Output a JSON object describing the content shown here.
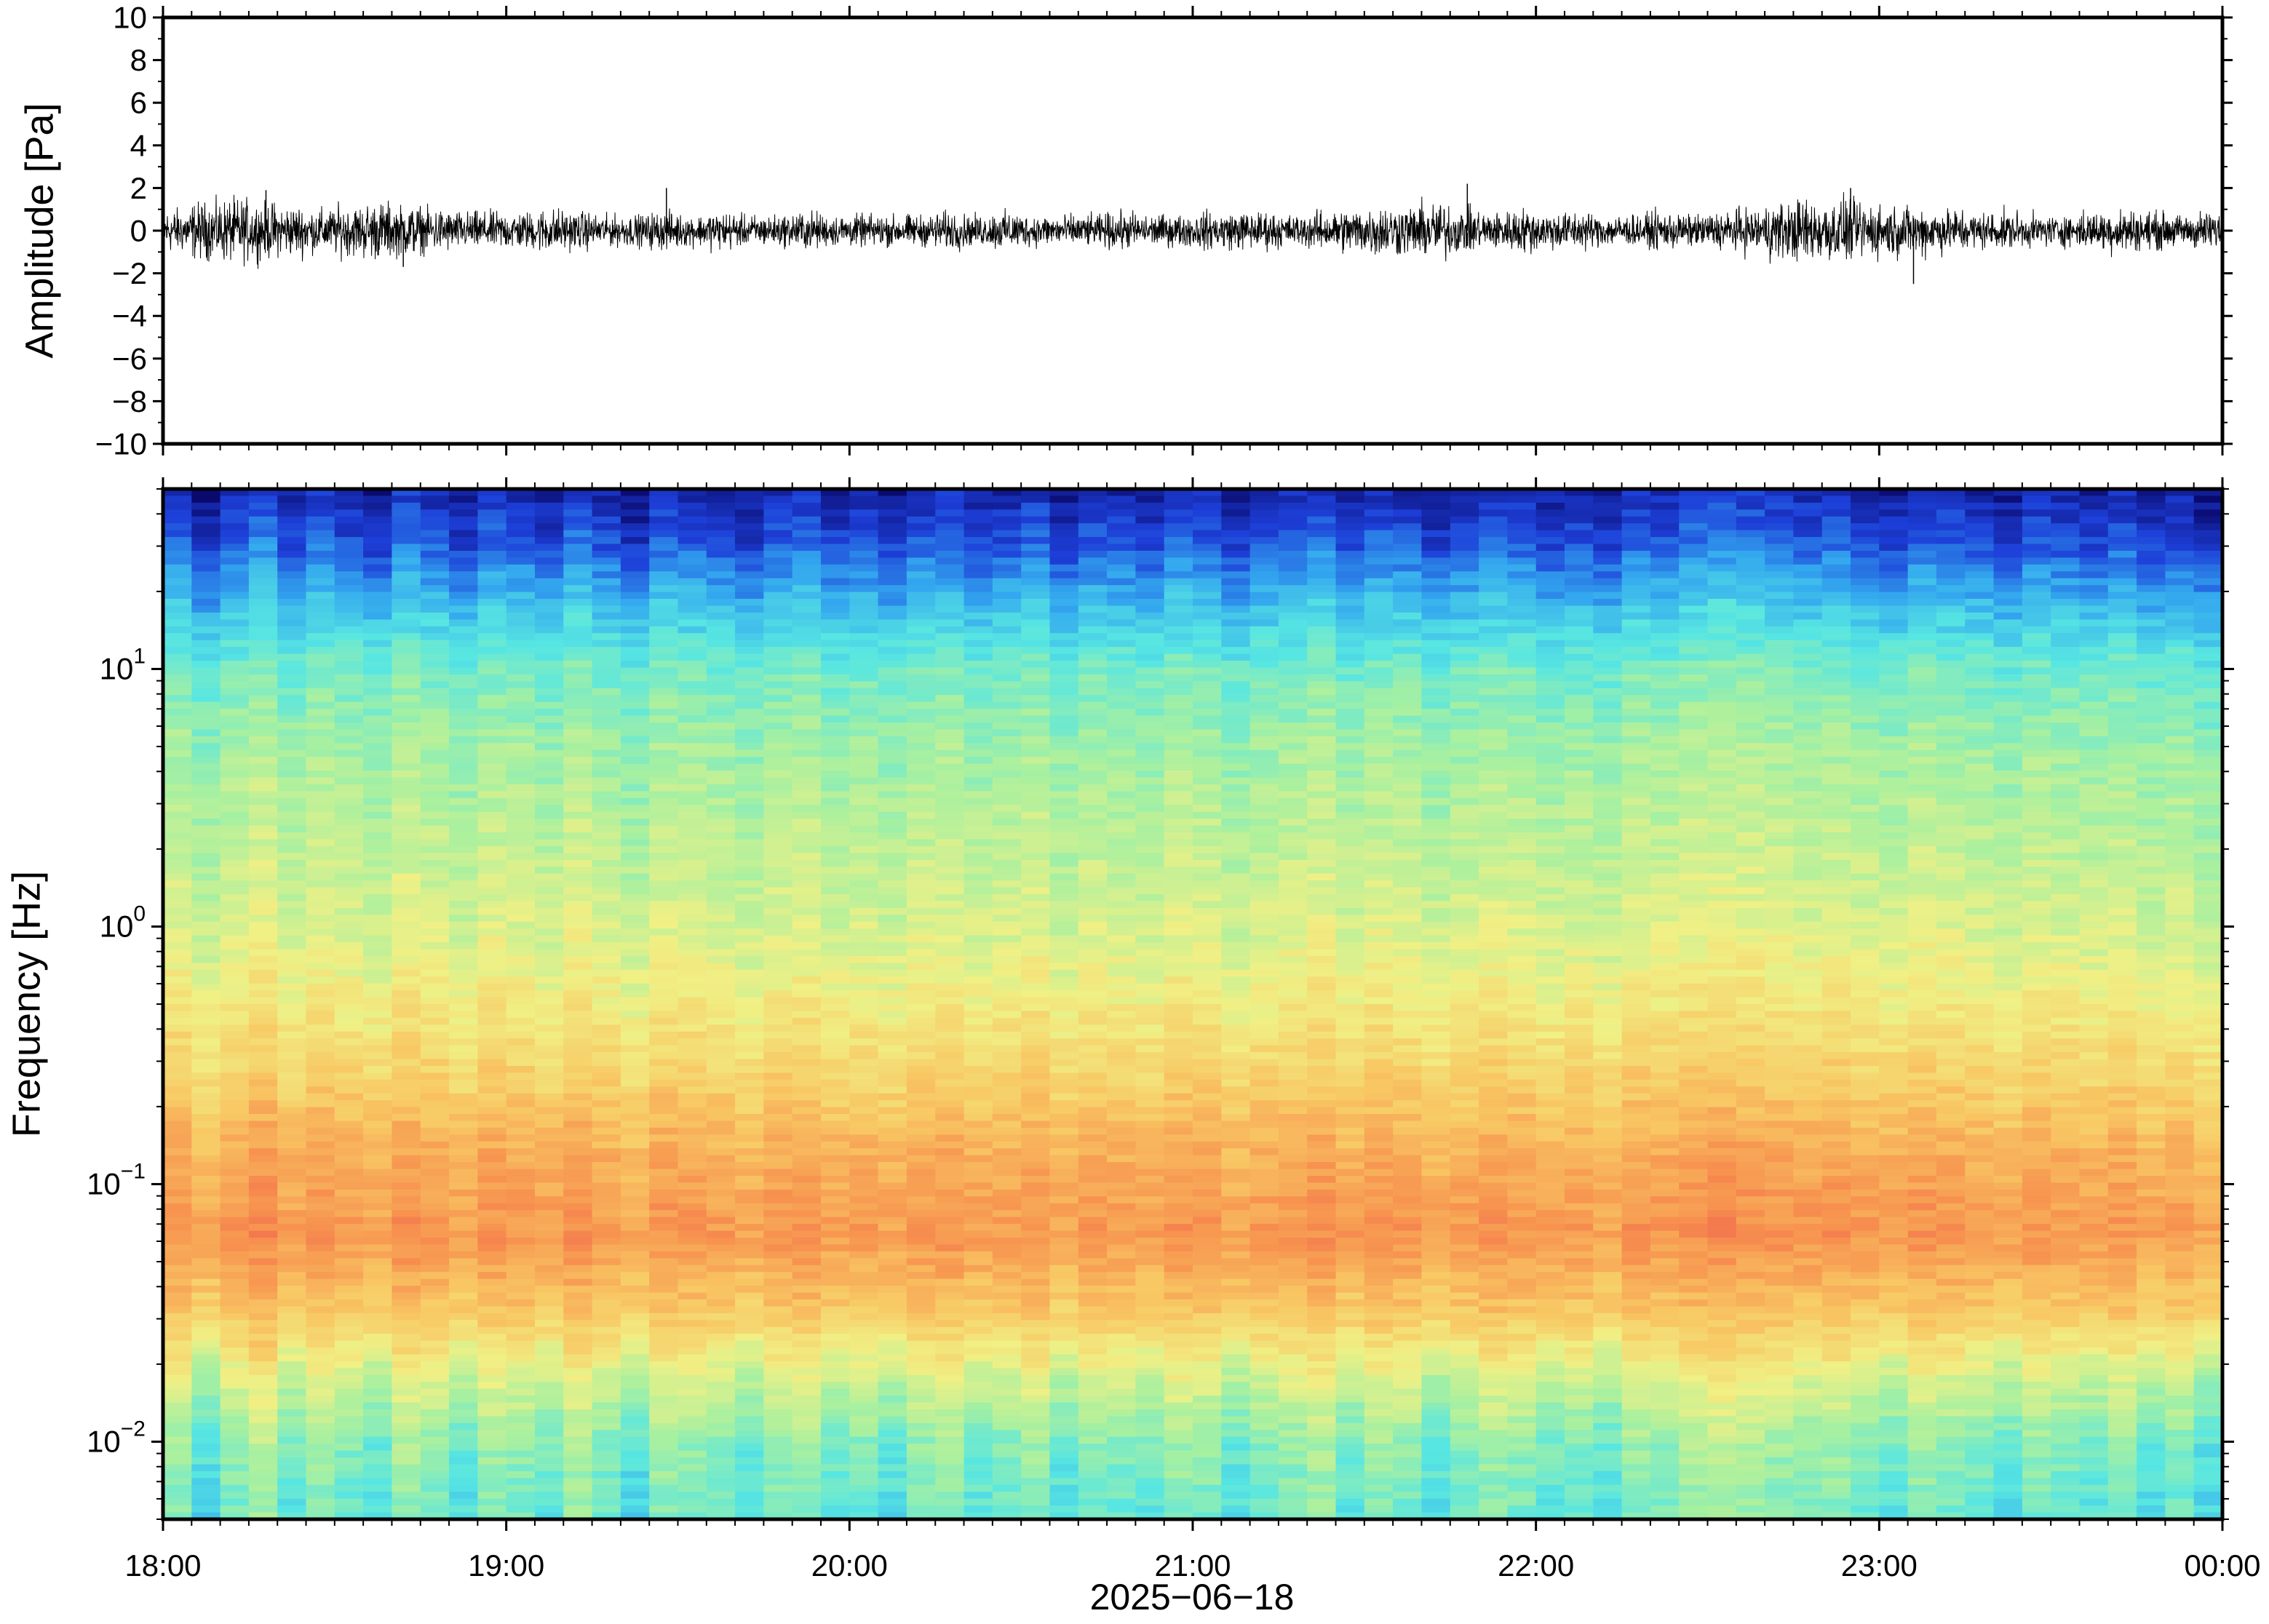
{
  "chart_data": [
    {
      "type": "line",
      "panel": "waveform",
      "ylabel": "Amplitude [Pa]",
      "ylim": [
        -10,
        10
      ],
      "y_ticks": [
        "10",
        "8",
        "6",
        "4",
        "2",
        "0",
        "−2",
        "−4",
        "−6",
        "−8",
        "−10"
      ],
      "y_tick_values": [
        10,
        8,
        6,
        4,
        2,
        0,
        -2,
        -4,
        -6,
        -8,
        -10
      ],
      "x_range": [
        "18:00",
        "00:00"
      ],
      "series": [
        {
          "line_color": "#000000",
          "envelope_per_5min": [
            0.7,
            0.9,
            1.0,
            0.9,
            0.8,
            0.7,
            0.8,
            0.9,
            0.8,
            0.7,
            0.6,
            0.6,
            0.6,
            0.7,
            0.6,
            0.5,
            0.5,
            0.6,
            0.5,
            0.6,
            0.5,
            0.5,
            0.6,
            0.5,
            0.5,
            0.5,
            0.5,
            0.6,
            0.5,
            0.6,
            0.5,
            0.5,
            0.5,
            0.6,
            0.5,
            0.5,
            0.6,
            0.6,
            0.6,
            0.5,
            0.6,
            0.7,
            0.8,
            0.8,
            0.9,
            0.7,
            0.6,
            0.7,
            0.6,
            0.6,
            0.5,
            0.5,
            0.6,
            0.5,
            0.6,
            0.7,
            0.9,
            1.0,
            1.0,
            0.9,
            0.8,
            0.8,
            0.7,
            0.6,
            0.6,
            0.5,
            0.5,
            0.6,
            0.7,
            0.6,
            0.5,
            0.6
          ],
          "peaks": [
            {
              "time": "18:18",
              "value": 1.9
            },
            {
              "time": "18:42",
              "value": -1.7
            },
            {
              "time": "19:28",
              "value": 2.0
            },
            {
              "time": "21:48",
              "value": 2.2
            },
            {
              "time": "22:55",
              "value": 2.0
            },
            {
              "time": "23:06",
              "value": -2.5
            }
          ]
        }
      ]
    },
    {
      "type": "heatmap",
      "panel": "spectrogram",
      "ylabel": "Frequency [Hz]",
      "y_scale": "log",
      "ylim": [
        0.005,
        50
      ],
      "y_ticks": [
        {
          "value": 10,
          "base": "10",
          "exp": "1"
        },
        {
          "value": 1,
          "base": "10",
          "exp": "0"
        },
        {
          "value": 0.1,
          "base": "10",
          "exp": "−1"
        },
        {
          "value": 0.01,
          "base": "10",
          "exp": "−2"
        }
      ],
      "colormap": "jet",
      "palette": [
        "#0a0a6e",
        "#1d3fd8",
        "#33a7ef",
        "#57e6e2",
        "#a8f0a0",
        "#f0f085",
        "#f8c864",
        "#f7934f",
        "#ef5a4e"
      ],
      "relative_level_profile_by_log10_freq": [
        {
          "log10_hz": -2.3,
          "level": 0.4
        },
        {
          "log10_hz": -2.0,
          "level": 0.45
        },
        {
          "log10_hz": -1.75,
          "level": 0.57
        },
        {
          "log10_hz": -1.5,
          "level": 0.74
        },
        {
          "log10_hz": -1.2,
          "level": 0.86
        },
        {
          "log10_hz": -0.9,
          "level": 0.81
        },
        {
          "log10_hz": -0.6,
          "level": 0.72
        },
        {
          "log10_hz": -0.3,
          "level": 0.64
        },
        {
          "log10_hz": 0.0,
          "level": 0.58
        },
        {
          "log10_hz": 0.3,
          "level": 0.54
        },
        {
          "log10_hz": 0.7,
          "level": 0.49
        },
        {
          "log10_hz": 1.0,
          "level": 0.42
        },
        {
          "log10_hz": 1.25,
          "level": 0.29
        },
        {
          "log10_hz": 1.5,
          "level": 0.14
        },
        {
          "log10_hz": 1.7,
          "level": 0.06
        }
      ],
      "column_offsets": [
        0.02,
        -0.03,
        0.01,
        0.04,
        -0.01,
        0.02,
        0.0,
        -0.02,
        0.03,
        0.01,
        -0.02,
        0.02,
        0.01,
        -0.01,
        0.03,
        0.0,
        -0.03,
        0.02,
        0.01,
        0.0,
        -0.02,
        0.01,
        0.02,
        -0.01,
        0.0,
        -0.02,
        0.01,
        0.02,
        -0.01,
        0.0,
        0.02,
        -0.02,
        0.01,
        0.0,
        -0.01,
        0.02,
        0.01,
        -0.02,
        0.0,
        0.01,
        0.03,
        -0.01,
        0.02,
        0.01,
        -0.02,
        0.0,
        0.02,
        0.01,
        -0.01,
        0.0,
        -0.02,
        0.02,
        0.01,
        0.03,
        0.04,
        0.03,
        0.02,
        0.01,
        0.02,
        0.0,
        -0.01,
        0.02,
        0.01,
        0.0,
        -0.02,
        0.01,
        0.0,
        -0.01,
        0.01,
        -0.02,
        0.0,
        -0.03
      ],
      "x_range": [
        "18:00",
        "00:00"
      ]
    }
  ],
  "x_axis": {
    "tick_labels": [
      "18:00",
      "19:00",
      "20:00",
      "21:00",
      "22:00",
      "23:00",
      "00:00"
    ],
    "date_label": "2025−06−18"
  }
}
